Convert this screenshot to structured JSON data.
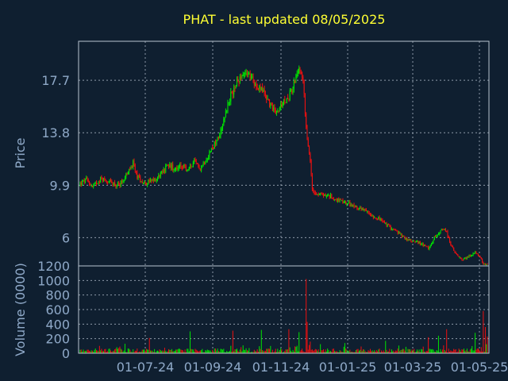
{
  "chart_data": {
    "type": "candlestick",
    "title": "PHAT - last updated 08/05/2025",
    "price_panel": {
      "ylabel": "Price",
      "y_ticks": [
        "17.7",
        "13.8",
        "9.9",
        "6"
      ],
      "ylim": [
        3.9,
        20.6
      ],
      "grid": true
    },
    "volume_panel": {
      "ylabel": "Volume (0000)",
      "y_ticks": [
        "1200",
        "1000",
        "800",
        "600",
        "400",
        "200",
        "0"
      ],
      "ylim": [
        0,
        1200
      ],
      "grid": true
    },
    "x_ticks": [
      "01-07-24",
      "01-09-24",
      "01-11-24",
      "01-01-25",
      "01-03-25",
      "01-05-25"
    ],
    "colors": {
      "up": "#00e400",
      "down": "#ee1010",
      "background": "#0f1f30",
      "title": "#ffff33",
      "axis_text": "#8fa9c8"
    },
    "price_anchors": [
      [
        0,
        10.0
      ],
      [
        6,
        10.3
      ],
      [
        12,
        9.8
      ],
      [
        20,
        10.4
      ],
      [
        30,
        10.1
      ],
      [
        38,
        9.9
      ],
      [
        46,
        10.7
      ],
      [
        52,
        11.5
      ],
      [
        56,
        10.6
      ],
      [
        62,
        10.1
      ],
      [
        72,
        10.2
      ],
      [
        80,
        10.8
      ],
      [
        86,
        11.4
      ],
      [
        92,
        11.2
      ],
      [
        100,
        11.3
      ],
      [
        106,
        11.0
      ],
      [
        112,
        11.6
      ],
      [
        118,
        11.2
      ],
      [
        124,
        11.9
      ],
      [
        130,
        12.7
      ],
      [
        136,
        13.5
      ],
      [
        140,
        14.5
      ],
      [
        146,
        16.2
      ],
      [
        152,
        17.2
      ],
      [
        158,
        18.1
      ],
      [
        164,
        18.3
      ],
      [
        170,
        17.6
      ],
      [
        176,
        17.2
      ],
      [
        182,
        16.6
      ],
      [
        188,
        15.7
      ],
      [
        194,
        15.4
      ],
      [
        200,
        16.0
      ],
      [
        206,
        16.7
      ],
      [
        212,
        17.8
      ],
      [
        216,
        18.5
      ],
      [
        219,
        18.0
      ],
      [
        221,
        15.0
      ],
      [
        223,
        13.2
      ],
      [
        226,
        11.6
      ],
      [
        228,
        9.6
      ],
      [
        232,
        9.3
      ],
      [
        238,
        9.2
      ],
      [
        244,
        9.1
      ],
      [
        250,
        8.9
      ],
      [
        258,
        8.6
      ],
      [
        264,
        8.5
      ],
      [
        270,
        8.3
      ],
      [
        276,
        8.1
      ],
      [
        282,
        7.9
      ],
      [
        288,
        7.6
      ],
      [
        294,
        7.4
      ],
      [
        300,
        7.0
      ],
      [
        306,
        6.7
      ],
      [
        312,
        6.4
      ],
      [
        318,
        6.0
      ],
      [
        324,
        5.8
      ],
      [
        330,
        5.7
      ],
      [
        336,
        5.5
      ],
      [
        342,
        5.2
      ],
      [
        346,
        5.6
      ],
      [
        348,
        6.0
      ],
      [
        352,
        6.4
      ],
      [
        356,
        6.6
      ],
      [
        360,
        6.4
      ],
      [
        364,
        5.5
      ],
      [
        368,
        4.9
      ],
      [
        372,
        4.5
      ],
      [
        376,
        4.4
      ],
      [
        380,
        4.5
      ],
      [
        384,
        4.7
      ],
      [
        388,
        4.9
      ],
      [
        392,
        4.6
      ],
      [
        396,
        4.1
      ],
      [
        400,
        4.0
      ]
    ],
    "volume_spikes": [
      [
        44,
        130
      ],
      [
        68,
        210
      ],
      [
        108,
        300
      ],
      [
        150,
        310
      ],
      [
        178,
        320
      ],
      [
        205,
        330
      ],
      [
        215,
        290
      ],
      [
        222,
        1020
      ],
      [
        223,
        430
      ],
      [
        226,
        160
      ],
      [
        260,
        140
      ],
      [
        300,
        170
      ],
      [
        342,
        220
      ],
      [
        352,
        240
      ],
      [
        360,
        330
      ],
      [
        388,
        280
      ],
      [
        396,
        580
      ],
      [
        398,
        360
      ],
      [
        400,
        230
      ]
    ]
  }
}
